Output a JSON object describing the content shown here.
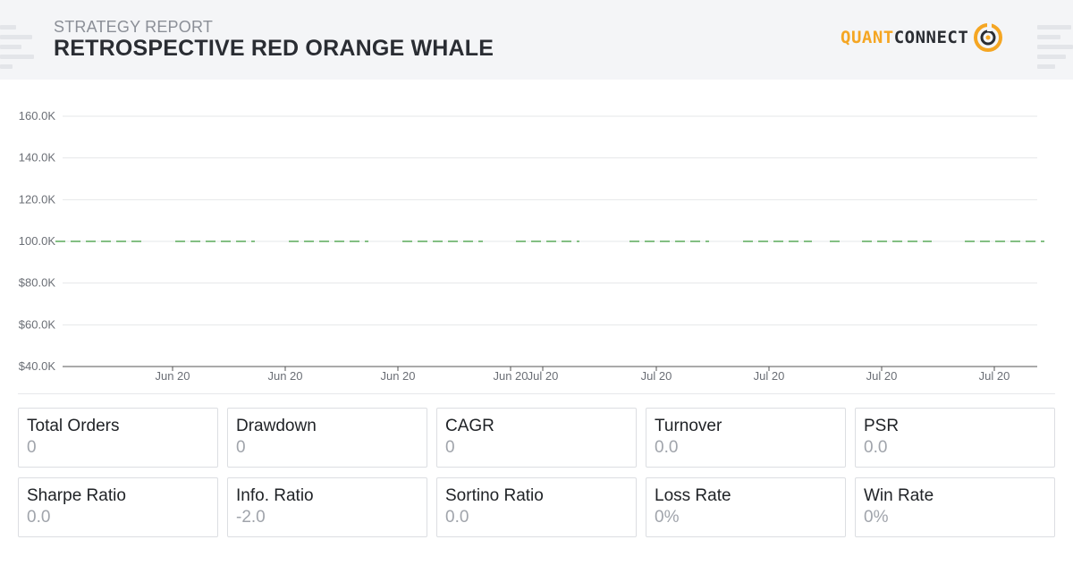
{
  "header": {
    "report_label": "STRATEGY REPORT",
    "strategy_name": "RETROSPECTIVE RED ORANGE WHALE",
    "logo": {
      "part1": "QUANT",
      "part2": "CONNECT",
      "icon": "quantconnect-logo-icon"
    }
  },
  "colors": {
    "accent": "#f5a623",
    "equity_line": "#5aaa5a",
    "grid": "#e6e7ea",
    "axis": "#555555"
  },
  "chart_data": {
    "type": "line",
    "title": "",
    "xlabel": "",
    "ylabel": "",
    "y_ticks": [
      {
        "value": 40000,
        "label": "$40.0K"
      },
      {
        "value": 60000,
        "label": "$60.0K"
      },
      {
        "value": 80000,
        "label": "$80.0K"
      },
      {
        "value": 100000,
        "label": "100.0K"
      },
      {
        "value": 120000,
        "label": "120.0K"
      },
      {
        "value": 140000,
        "label": "140.0K"
      },
      {
        "value": 160000,
        "label": "160.0K"
      }
    ],
    "ylim": [
      40000,
      160000
    ],
    "x_ticks": [
      "Jun 20",
      "Jun 20",
      "Jun 20",
      "Jun 20",
      "Jul 20",
      "Jul 20",
      "Jul 20",
      "Jul 20",
      "Jul 20"
    ],
    "grid": true,
    "legend": "none",
    "series": [
      {
        "style": "dashed",
        "value": 100000
      }
    ]
  },
  "stats": [
    {
      "label": "Total Orders",
      "value": "0"
    },
    {
      "label": "Drawdown",
      "value": "0"
    },
    {
      "label": "CAGR",
      "value": "0"
    },
    {
      "label": "Turnover",
      "value": "0.0"
    },
    {
      "label": "PSR",
      "value": "0.0"
    },
    {
      "label": "Sharpe Ratio",
      "value": "0.0"
    },
    {
      "label": "Info. Ratio",
      "value": "-2.0"
    },
    {
      "label": "Sortino Ratio",
      "value": "0.0"
    },
    {
      "label": "Loss Rate",
      "value": "0%"
    },
    {
      "label": "Win Rate",
      "value": "0%"
    }
  ]
}
